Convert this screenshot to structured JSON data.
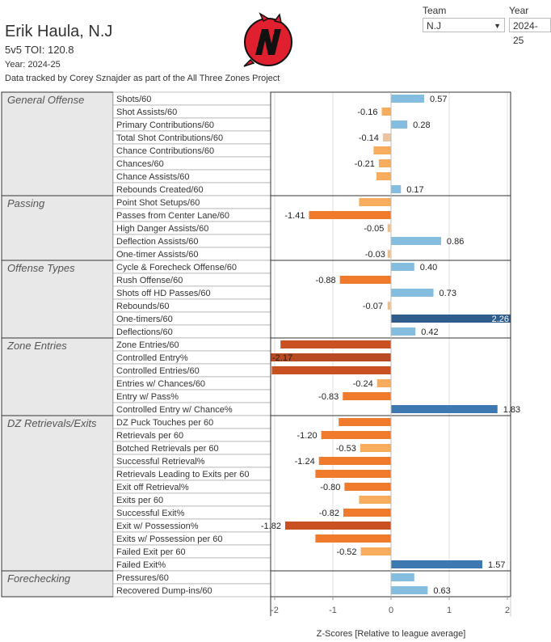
{
  "header": {
    "player": "Erik Haula, N.J",
    "toi": "5v5 TOI: 120.8",
    "year": "Year: 2024-25",
    "source": "Data tracked by Corey Sznajder as part of the All Three Zones Project"
  },
  "filters": {
    "team_label": "Team",
    "team_value": "N.J",
    "year_label": "Year",
    "year_value": "2024-25"
  },
  "logo": {
    "name": "new-jersey-devils-logo",
    "red": "#e0202f",
    "black": "#111111"
  },
  "colors": {
    "dark_orange": "#c95020",
    "orange": "#f07b2c",
    "light_orange": "#f8ad5e",
    "light_blue": "#85bde0",
    "mid_blue": "#3e78b0",
    "dark_blue": "#2e5c8c",
    "group_bg": "#e8e8e8"
  },
  "chart_data": {
    "type": "bar",
    "orientation": "horizontal",
    "xlabel": "Z-Scores [Relative to league average]",
    "xlim": [
      -2,
      2
    ],
    "xticks": [
      -2,
      -1,
      0,
      1,
      2
    ],
    "xtick_labels": [
      "-2",
      "-1",
      "0",
      "1",
      "2"
    ],
    "groups": [
      {
        "name": "General Offense",
        "rows": [
          {
            "label": "Shots/60",
            "value": 0.57,
            "label_text": "0.57"
          },
          {
            "label": "Shot Assists/60",
            "value": -0.16,
            "label_text": "-0.16"
          },
          {
            "label": "Primary Contributions/60",
            "value": 0.28,
            "label_text": "0.28"
          },
          {
            "label": "Total Shot Contributions/60",
            "value": -0.14,
            "label_text": "-0.14"
          },
          {
            "label": "Chance Contributions/60",
            "value": -0.3,
            "label_text": ""
          },
          {
            "label": "Chances/60",
            "value": -0.21,
            "label_text": "-0.21"
          },
          {
            "label": "Chance Assists/60",
            "value": -0.25,
            "label_text": ""
          },
          {
            "label": "Rebounds Created/60",
            "value": 0.17,
            "label_text": "0.17"
          }
        ]
      },
      {
        "name": "Passing",
        "rows": [
          {
            "label": "Point Shot Setups/60",
            "value": -0.55,
            "label_text": ""
          },
          {
            "label": "Passes from Center Lane/60",
            "value": -1.41,
            "label_text": "-1.41"
          },
          {
            "label": "High Danger Assists/60",
            "value": -0.05,
            "label_text": "-0.05"
          },
          {
            "label": "Deflection Assists/60",
            "value": 0.86,
            "label_text": "0.86"
          },
          {
            "label": "One-timer Assists/60",
            "value": -0.03,
            "label_text": "-0.03"
          }
        ]
      },
      {
        "name": "Offense Types",
        "rows": [
          {
            "label": "Cycle & Forecheck Offense/60",
            "value": 0.4,
            "label_text": "0.40"
          },
          {
            "label": "Rush Offense/60",
            "value": -0.88,
            "label_text": "-0.88"
          },
          {
            "label": "Shots off HD Passes/60",
            "value": 0.73,
            "label_text": "0.73"
          },
          {
            "label": "Rebounds/60",
            "value": -0.07,
            "label_text": "-0.07"
          },
          {
            "label": "One-timers/60",
            "value": 2.26,
            "label_text": "2.26"
          },
          {
            "label": "Deflections/60",
            "value": 0.42,
            "label_text": "0.42"
          }
        ]
      },
      {
        "name": "Zone Entries",
        "rows": [
          {
            "label": "Zone Entries/60",
            "value": -1.9,
            "label_text": ""
          },
          {
            "label": "Controlled Entry%",
            "value": -2.17,
            "label_text": "-2.17"
          },
          {
            "label": "Controlled Entries/60",
            "value": -2.05,
            "label_text": ""
          },
          {
            "label": "Entries w/ Chances/60",
            "value": -0.24,
            "label_text": "-0.24"
          },
          {
            "label": "Entry w/ Pass%",
            "value": -0.83,
            "label_text": "-0.83"
          },
          {
            "label": "Controlled Entry w/ Chance%",
            "value": 1.83,
            "label_text": "1.83"
          }
        ]
      },
      {
        "name": "DZ Retrievals/Exits",
        "rows": [
          {
            "label": "DZ Puck Touches per 60",
            "value": -0.9,
            "label_text": ""
          },
          {
            "label": "Retrievals per 60",
            "value": -1.2,
            "label_text": "-1.20"
          },
          {
            "label": "Botched Retrievals per 60",
            "value": -0.53,
            "label_text": "-0.53"
          },
          {
            "label": "Successful Retrieval%",
            "value": -1.24,
            "label_text": "-1.24"
          },
          {
            "label": "Retrievals Leading to Exits per 60",
            "value": -1.3,
            "label_text": ""
          },
          {
            "label": "Exit off Retrieval%",
            "value": -0.8,
            "label_text": "-0.80"
          },
          {
            "label": "Exits per 60",
            "value": -0.55,
            "label_text": ""
          },
          {
            "label": "Successful Exit%",
            "value": -0.82,
            "label_text": "-0.82"
          },
          {
            "label": "Exit w/ Possession%",
            "value": -1.82,
            "label_text": "-1.82"
          },
          {
            "label": "Exits w/ Possession per 60",
            "value": -1.3,
            "label_text": ""
          },
          {
            "label": "Failed Exit per 60",
            "value": -0.52,
            "label_text": "-0.52"
          },
          {
            "label": "Failed Exit%",
            "value": 1.57,
            "label_text": "1.57"
          }
        ]
      },
      {
        "name": "Forechecking",
        "rows": [
          {
            "label": "Pressures/60",
            "value": 0.4,
            "label_text": ""
          },
          {
            "label": "Recovered Dump-ins/60",
            "value": 0.63,
            "label_text": "0.63"
          }
        ]
      }
    ]
  }
}
